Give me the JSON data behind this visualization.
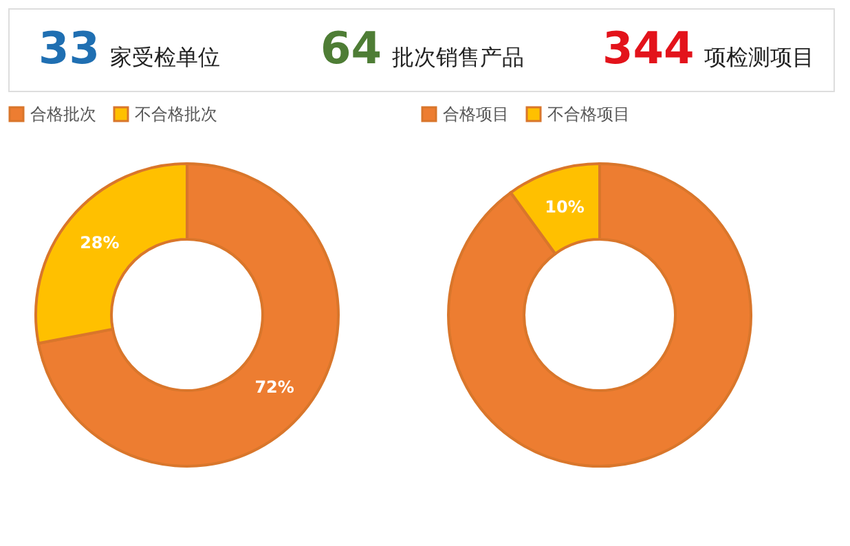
{
  "chart_data": [
    {
      "type": "other",
      "annotations": [
        "33",
        "家受检单位",
        "64",
        "批次销售产品",
        "344",
        "项检测项目"
      ]
    },
    {
      "type": "donut",
      "categories": [
        "合格批次",
        "不合格批次"
      ],
      "values": [
        72,
        28
      ],
      "colors": [
        "#ed7d31",
        "#ffc000"
      ],
      "value_labels": [
        "72%",
        "28%"
      ],
      "legend": "top"
    },
    {
      "type": "donut",
      "categories": [
        "合格项目",
        "不合格项目"
      ],
      "values": [
        90,
        10
      ],
      "colors": [
        "#ed7d31",
        "#ffc000"
      ],
      "value_labels": [
        null,
        "10%"
      ],
      "legend": "top"
    }
  ]
}
